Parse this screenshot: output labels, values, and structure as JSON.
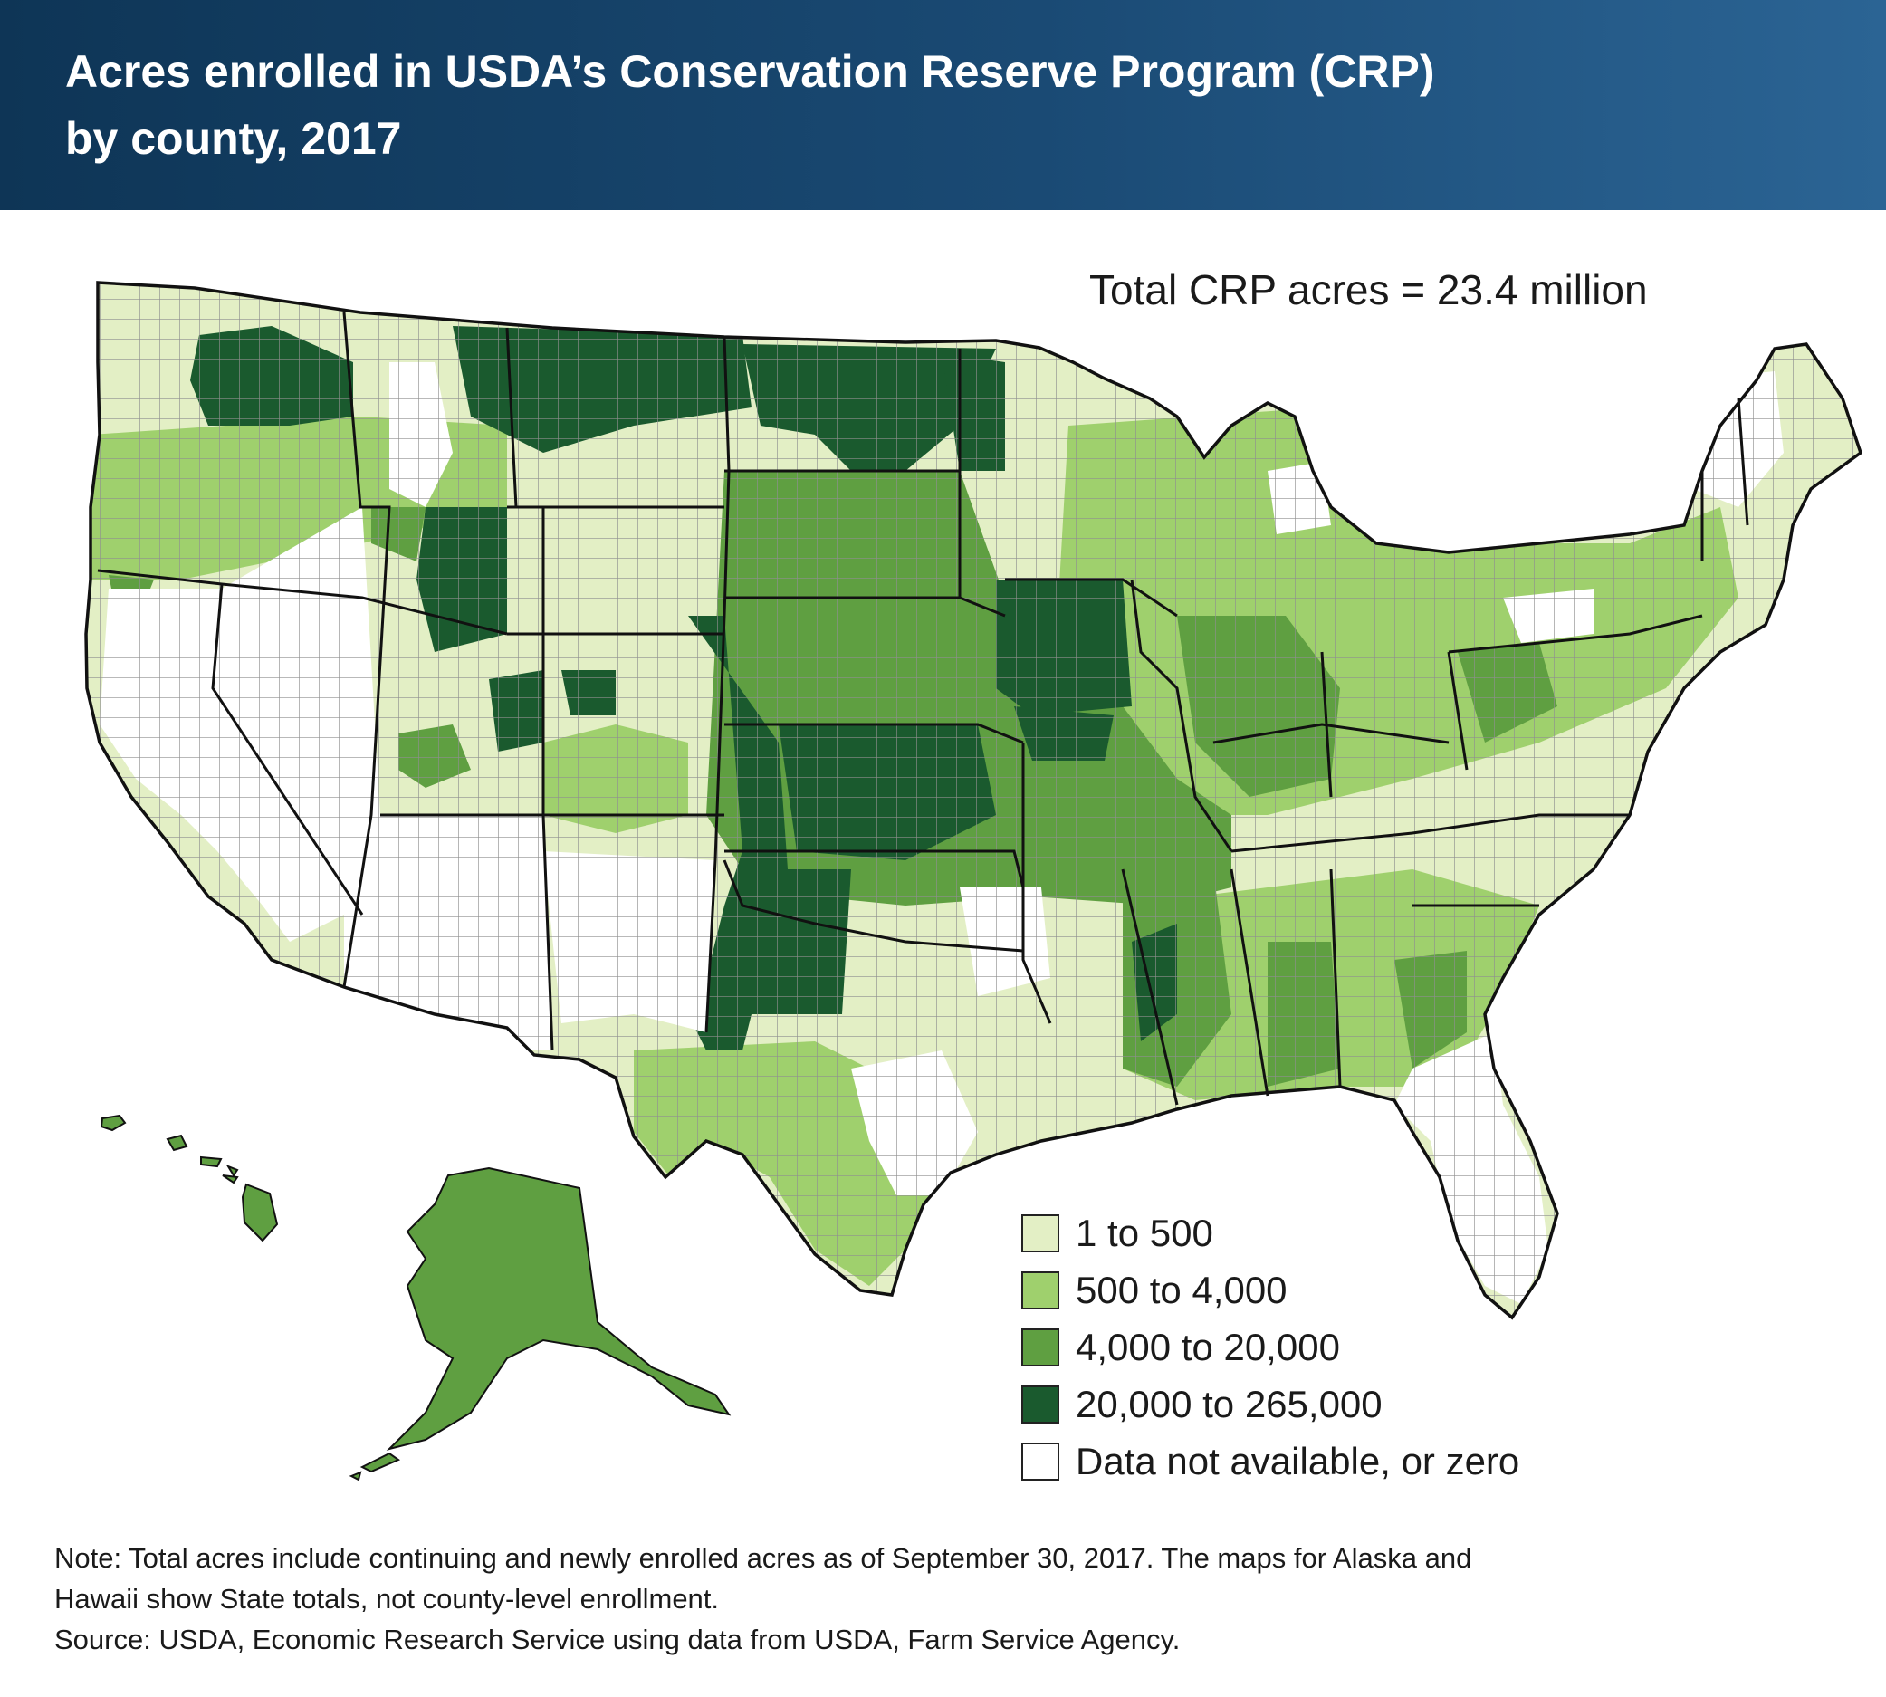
{
  "title": {
    "line1": "Acres enrolled in USDA’s Conservation Reserve Program (CRP)",
    "line2": "by county, 2017"
  },
  "total_label": "Total CRP acres = 23.4 million",
  "colors": {
    "header_dark": "#0e3556",
    "header_light": "#2b6494",
    "class_1": "#e3efc5",
    "class_2": "#9fd06d",
    "class_3": "#5f9f41",
    "class_4": "#1a5a2e",
    "class_0": "#ffffff"
  },
  "legend": [
    {
      "label": "1 to 500",
      "color": "#e3efc5"
    },
    {
      "label": "500 to 4,000",
      "color": "#9fd06d"
    },
    {
      "label": "4,000 to 20,000",
      "color": "#5f9f41"
    },
    {
      "label": "20,000 to 265,000",
      "color": "#1a5a2e"
    },
    {
      "label": "Data not available, or zero",
      "color": "#ffffff"
    }
  ],
  "notes": {
    "line1": "Note: Total acres include continuing and newly enrolled acres as of September 30, 2017. The maps for Alaska and",
    "line2": "Hawaii show State totals, not county-level enrollment.",
    "line3": "Source: USDA, Economic Research Service using data from USDA, Farm Service Agency."
  }
}
